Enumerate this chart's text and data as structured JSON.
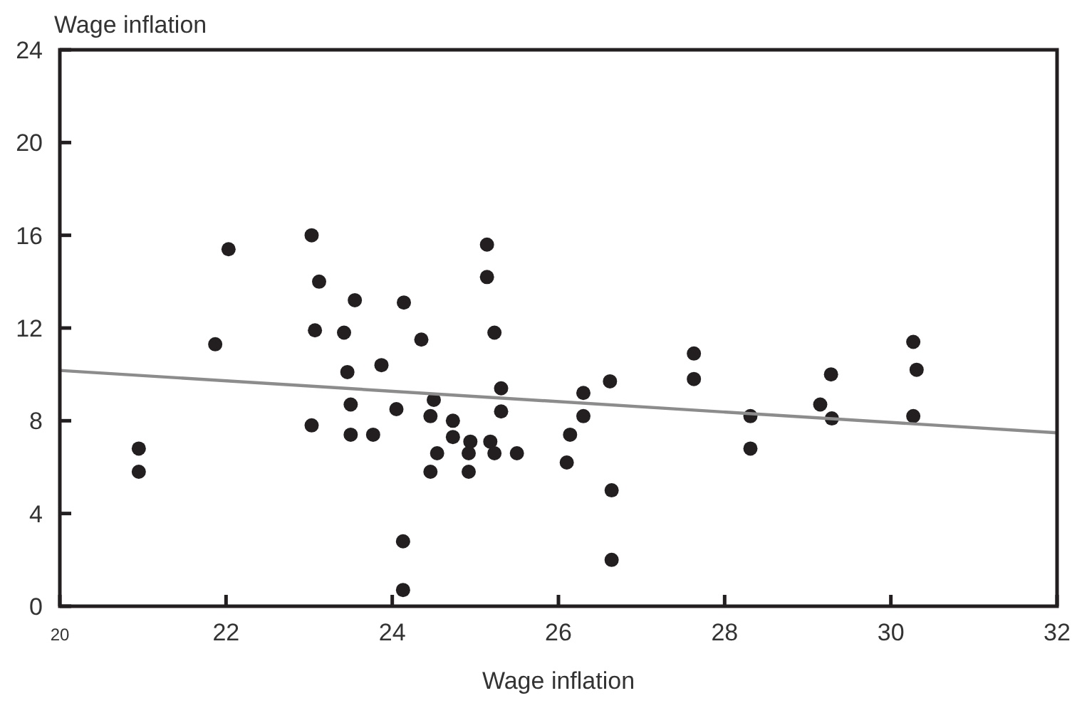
{
  "chart_data": {
    "type": "scatter",
    "xlabel": "Wage inflation",
    "ylabel": "Wage inflation",
    "xlim": [
      20,
      32
    ],
    "ylim": [
      0,
      24
    ],
    "xticks": [
      20,
      22,
      24,
      26,
      28,
      30,
      32
    ],
    "yticks": [
      0,
      4,
      8,
      12,
      16,
      20,
      24
    ],
    "grid": false,
    "marker": "circle",
    "series": [
      {
        "color": "#231f20",
        "x": [
          20.95,
          20.95,
          22.03,
          21.87,
          23.03,
          23.12,
          23.55,
          24.14,
          23.07,
          23.42,
          24.35,
          23.46,
          23.87,
          23.5,
          24.05,
          23.03,
          23.5,
          23.77,
          24.13,
          24.13,
          25.14,
          25.14,
          25.23,
          25.31,
          24.5,
          24.46,
          24.73,
          25.31,
          24.73,
          24.94,
          25.18,
          24.54,
          24.92,
          25.23,
          25.5,
          24.46,
          24.92,
          26.3,
          26.3,
          26.14,
          26.1,
          26.62,
          26.64,
          26.64,
          27.63,
          27.63,
          28.31,
          28.31,
          29.28,
          29.15,
          29.29,
          30.27,
          30.31,
          30.27
        ],
        "values": [
          6.8,
          5.8,
          15.4,
          11.3,
          16,
          14,
          13.2,
          13.1,
          11.9,
          11.8,
          11.5,
          10.1,
          10.4,
          8.7,
          8.5,
          7.8,
          7.4,
          7.4,
          2.8,
          0.7,
          15.6,
          14.2,
          11.8,
          9.4,
          8.9,
          8.2,
          8,
          8.4,
          7.3,
          7.1,
          7.1,
          6.6,
          6.6,
          6.6,
          6.6,
          5.8,
          5.8,
          9.2,
          8.2,
          7.4,
          6.2,
          9.7,
          5,
          2,
          10.9,
          9.8,
          8.2,
          6.8,
          10,
          8.7,
          8.1,
          11.4,
          10.2,
          8.2
        ]
      },
      {
        "type": "line",
        "color": "#8c8c8c",
        "line_style": "solid",
        "marker": "none",
        "x": [
          20,
          32
        ],
        "values": [
          10.17,
          7.48
        ]
      }
    ]
  }
}
